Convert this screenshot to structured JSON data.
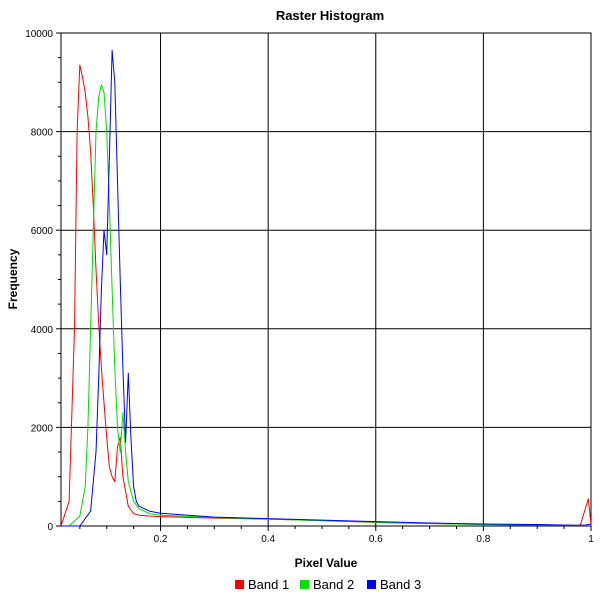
{
  "chart_data": {
    "type": "line",
    "title": "Raster Histogram",
    "xlabel": "Pixel Value",
    "ylabel": "Frequency",
    "xlim": [
      0.0,
      1.0
    ],
    "ylim": [
      0,
      10000
    ],
    "x_ticks": [
      0.2,
      0.4,
      0.6,
      0.8,
      1
    ],
    "x_tick_labels": [
      "0.2",
      "0.4",
      "0.6",
      "0.8",
      "1"
    ],
    "y_ticks": [
      0,
      2000,
      4000,
      6000,
      8000,
      10000
    ],
    "y_tick_labels": [
      "0",
      "2000",
      "4000",
      "6000",
      "8000",
      "10000"
    ],
    "grid": true,
    "legend_position": "bottom",
    "series": [
      {
        "name": "Band 1",
        "color": "#ff0000",
        "x": [
          0.015,
          0.03,
          0.04,
          0.045,
          0.05,
          0.055,
          0.06,
          0.065,
          0.07,
          0.075,
          0.08,
          0.085,
          0.09,
          0.095,
          0.1,
          0.105,
          0.11,
          0.115,
          0.12,
          0.125,
          0.13,
          0.135,
          0.14,
          0.15,
          0.16,
          0.18,
          0.2,
          0.3,
          0.4,
          0.5,
          0.6,
          0.7,
          0.8,
          0.9,
          0.98,
          0.995,
          1.0
        ],
        "y": [
          0,
          500,
          4000,
          8000,
          9350,
          9100,
          8800,
          8300,
          7600,
          6500,
          5200,
          4100,
          3200,
          2500,
          1800,
          1200,
          1000,
          900,
          1600,
          1800,
          1000,
          700,
          400,
          250,
          220,
          200,
          190,
          160,
          140,
          110,
          70,
          50,
          30,
          20,
          10,
          550,
          30
        ]
      },
      {
        "name": "Band 2",
        "color": "#00dd00",
        "x": [
          0.015,
          0.03,
          0.05,
          0.06,
          0.065,
          0.07,
          0.075,
          0.08,
          0.085,
          0.09,
          0.095,
          0.1,
          0.105,
          0.11,
          0.115,
          0.12,
          0.125,
          0.13,
          0.135,
          0.14,
          0.15,
          0.16,
          0.18,
          0.2,
          0.3,
          0.4,
          0.5,
          0.6,
          0.7,
          0.8,
          0.9,
          1.0
        ],
        "y": [
          0,
          0,
          200,
          800,
          2000,
          4000,
          6000,
          8000,
          8700,
          8950,
          8800,
          8000,
          6500,
          4800,
          3200,
          2000,
          1500,
          2300,
          1500,
          900,
          500,
          350,
          250,
          220,
          170,
          140,
          110,
          75,
          50,
          30,
          20,
          10
        ]
      },
      {
        "name": "Band 3",
        "color": "#0000ff",
        "x": [
          0.015,
          0.05,
          0.07,
          0.08,
          0.085,
          0.09,
          0.095,
          0.1,
          0.105,
          0.11,
          0.115,
          0.12,
          0.125,
          0.13,
          0.135,
          0.14,
          0.145,
          0.15,
          0.155,
          0.16,
          0.18,
          0.2,
          0.3,
          0.4,
          0.5,
          0.6,
          0.7,
          0.8,
          0.9,
          0.97,
          0.99,
          1.0
        ],
        "y": [
          0,
          0,
          300,
          1500,
          3000,
          4800,
          6000,
          5500,
          7500,
          9650,
          9000,
          7000,
          5000,
          3200,
          1700,
          3100,
          1800,
          800,
          500,
          400,
          300,
          260,
          180,
          150,
          120,
          90,
          60,
          40,
          30,
          15,
          20,
          40
        ]
      }
    ]
  }
}
